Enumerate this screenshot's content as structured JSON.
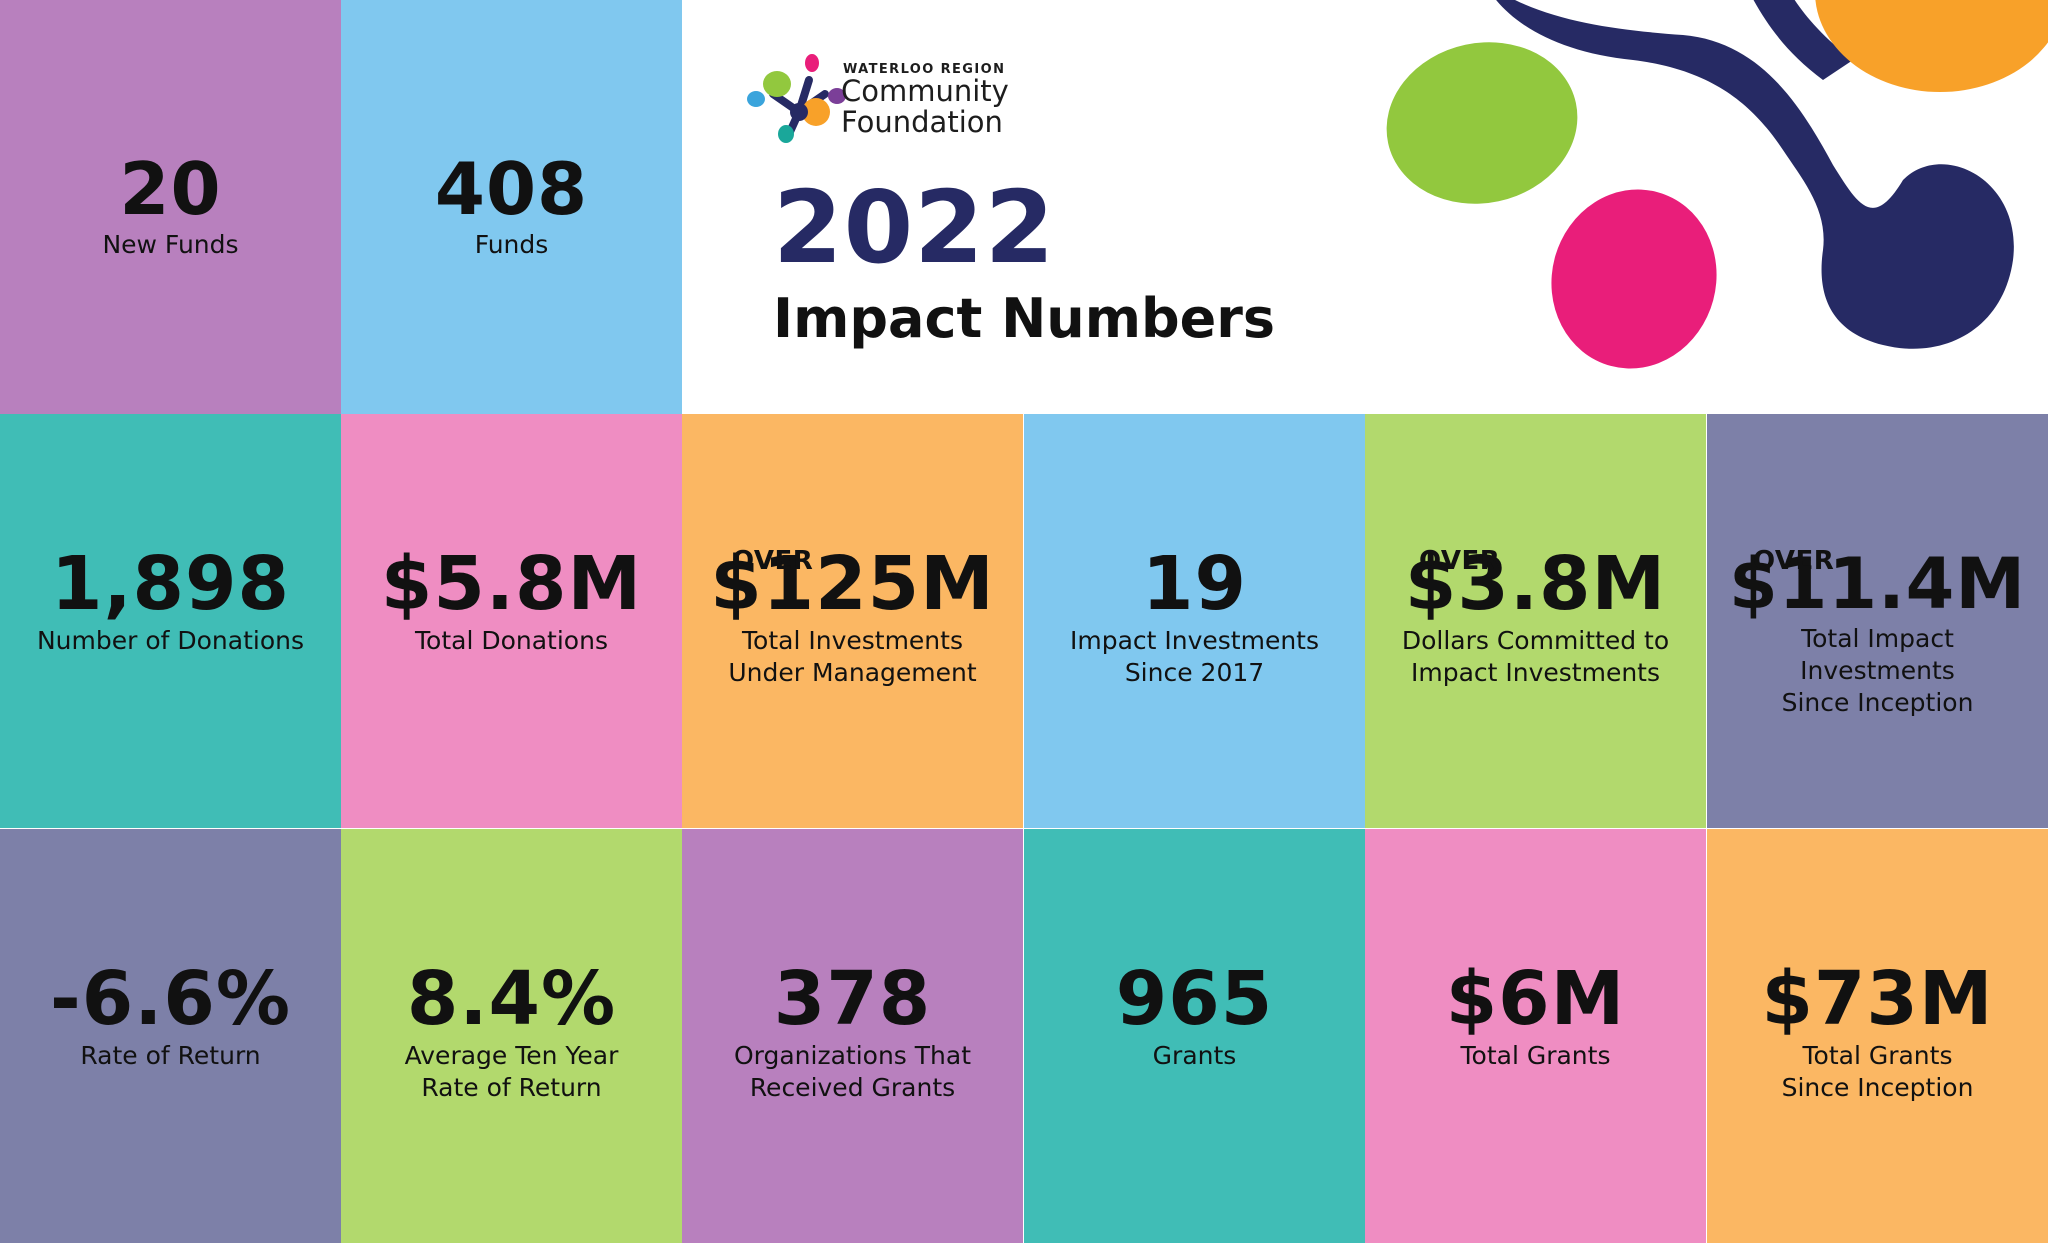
{
  "header": {
    "logo_region": "WATERLOO REGION",
    "logo_name": "Community\nFoundation",
    "year": "2022",
    "title": "Impact Numbers"
  },
  "colors": {
    "purple": "#b880be",
    "light_blue": "#80c8ef",
    "teal": "#40bdb6",
    "pink": "#ef8dc2",
    "orange": "#fbb763",
    "green": "#b2d96d",
    "slate": "#7d80a8",
    "navy": "#262a64",
    "bright_green": "#92c83e",
    "magenta": "#e91e7a",
    "bright_orange": "#f8a129"
  },
  "stats": [
    {
      "over": "",
      "value": "20",
      "label": "New Funds"
    },
    {
      "over": "",
      "value": "408",
      "label": "Funds"
    },
    {
      "over": "",
      "value": "1,898",
      "label": "Number of Donations"
    },
    {
      "over": "",
      "value": "$5.8M",
      "label": "Total Donations"
    },
    {
      "over": "OVER",
      "value": "$125M",
      "label": "Total Investments\nUnder Management"
    },
    {
      "over": "",
      "value": "19",
      "label": "Impact Investments\nSince 2017"
    },
    {
      "over": "OVER",
      "value": "$3.8M",
      "label": "Dollars Committed to\nImpact Investments"
    },
    {
      "over": "OVER",
      "value": "$11.4M",
      "label": "Total Impact\nInvestments\nSince Inception"
    },
    {
      "over": "",
      "value": "-6.6%",
      "label": "Rate of Return"
    },
    {
      "over": "",
      "value": "8.4%",
      "label": "Average Ten Year\nRate of Return"
    },
    {
      "over": "",
      "value": "378",
      "label": "Organizations That\nReceived Grants"
    },
    {
      "over": "",
      "value": "965",
      "label": "Grants"
    },
    {
      "over": "",
      "value": "$6M",
      "label": "Total Grants"
    },
    {
      "over": "",
      "value": "$73M",
      "label": "Total Grants\nSince Inception"
    }
  ]
}
